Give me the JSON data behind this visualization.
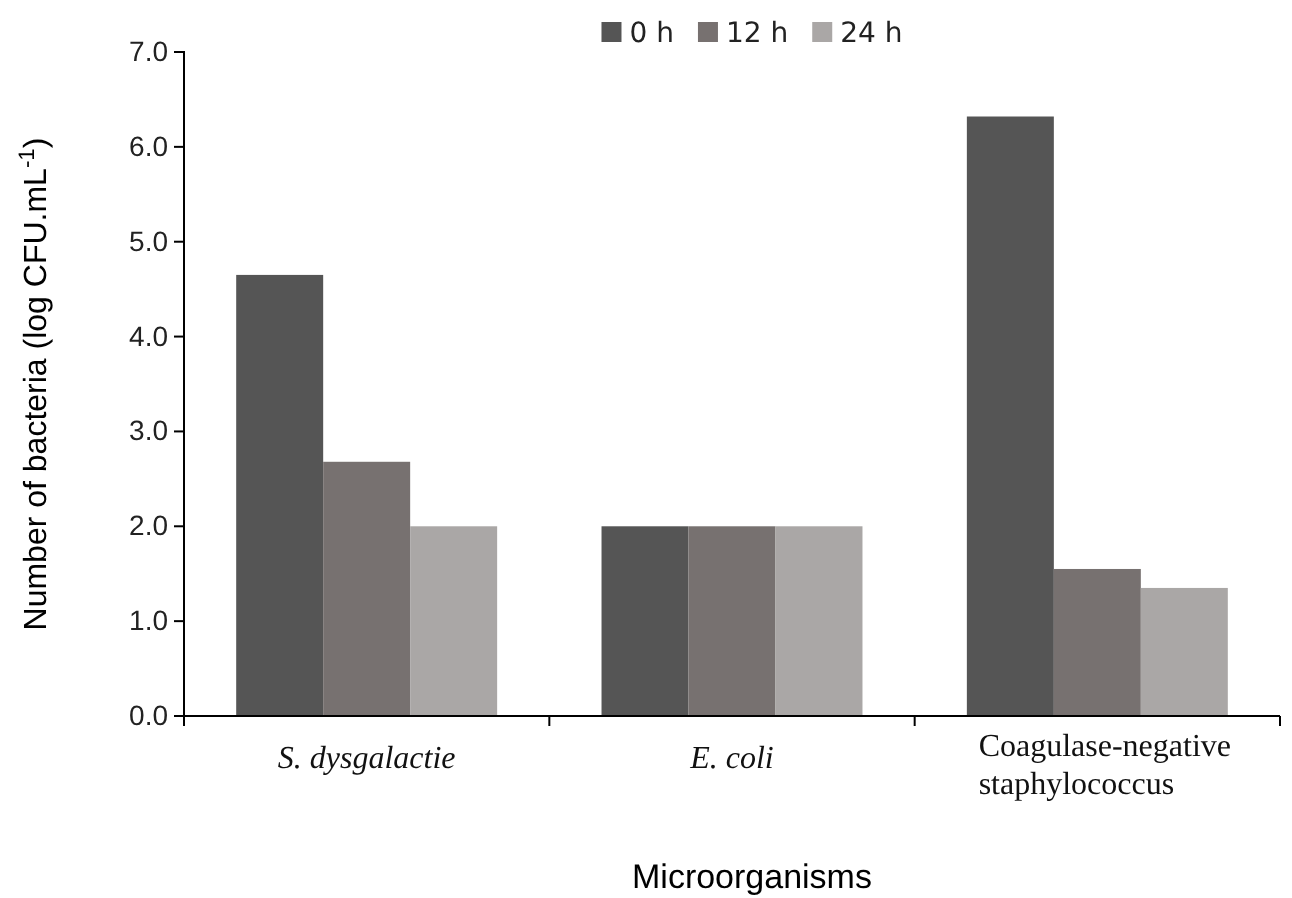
{
  "chart_data": {
    "type": "bar",
    "xlabel": "Microorganisms",
    "ylabel": "Number of bacteria (log CFU.mL$^{-1}$)",
    "categories": [
      "S. dysgalactie",
      "E. coli",
      "Coagulase-negative staphylococcus"
    ],
    "series": [
      {
        "name": "0 h",
        "color": "#555555",
        "values": [
          4.65,
          2.0,
          6.32
        ]
      },
      {
        "name": "12 h",
        "color": "#777170",
        "values": [
          2.68,
          2.0,
          1.55
        ]
      },
      {
        "name": "24 h",
        "color": "#aaa7a6",
        "values": [
          2.0,
          2.0,
          1.35
        ]
      }
    ],
    "ylim": [
      0,
      7
    ],
    "yticks": [
      {
        "value": 0,
        "label": "0.0"
      },
      {
        "value": 1,
        "label": "1.0"
      },
      {
        "value": 2,
        "label": "2.0"
      },
      {
        "value": 3,
        "label": "3.0"
      },
      {
        "value": 4,
        "label": "4.0"
      },
      {
        "value": 5,
        "label": "5.0"
      },
      {
        "value": 6,
        "label": "6.0"
      },
      {
        "value": 7,
        "label": "7.0"
      }
    ],
    "grid": false,
    "legend": "top"
  }
}
